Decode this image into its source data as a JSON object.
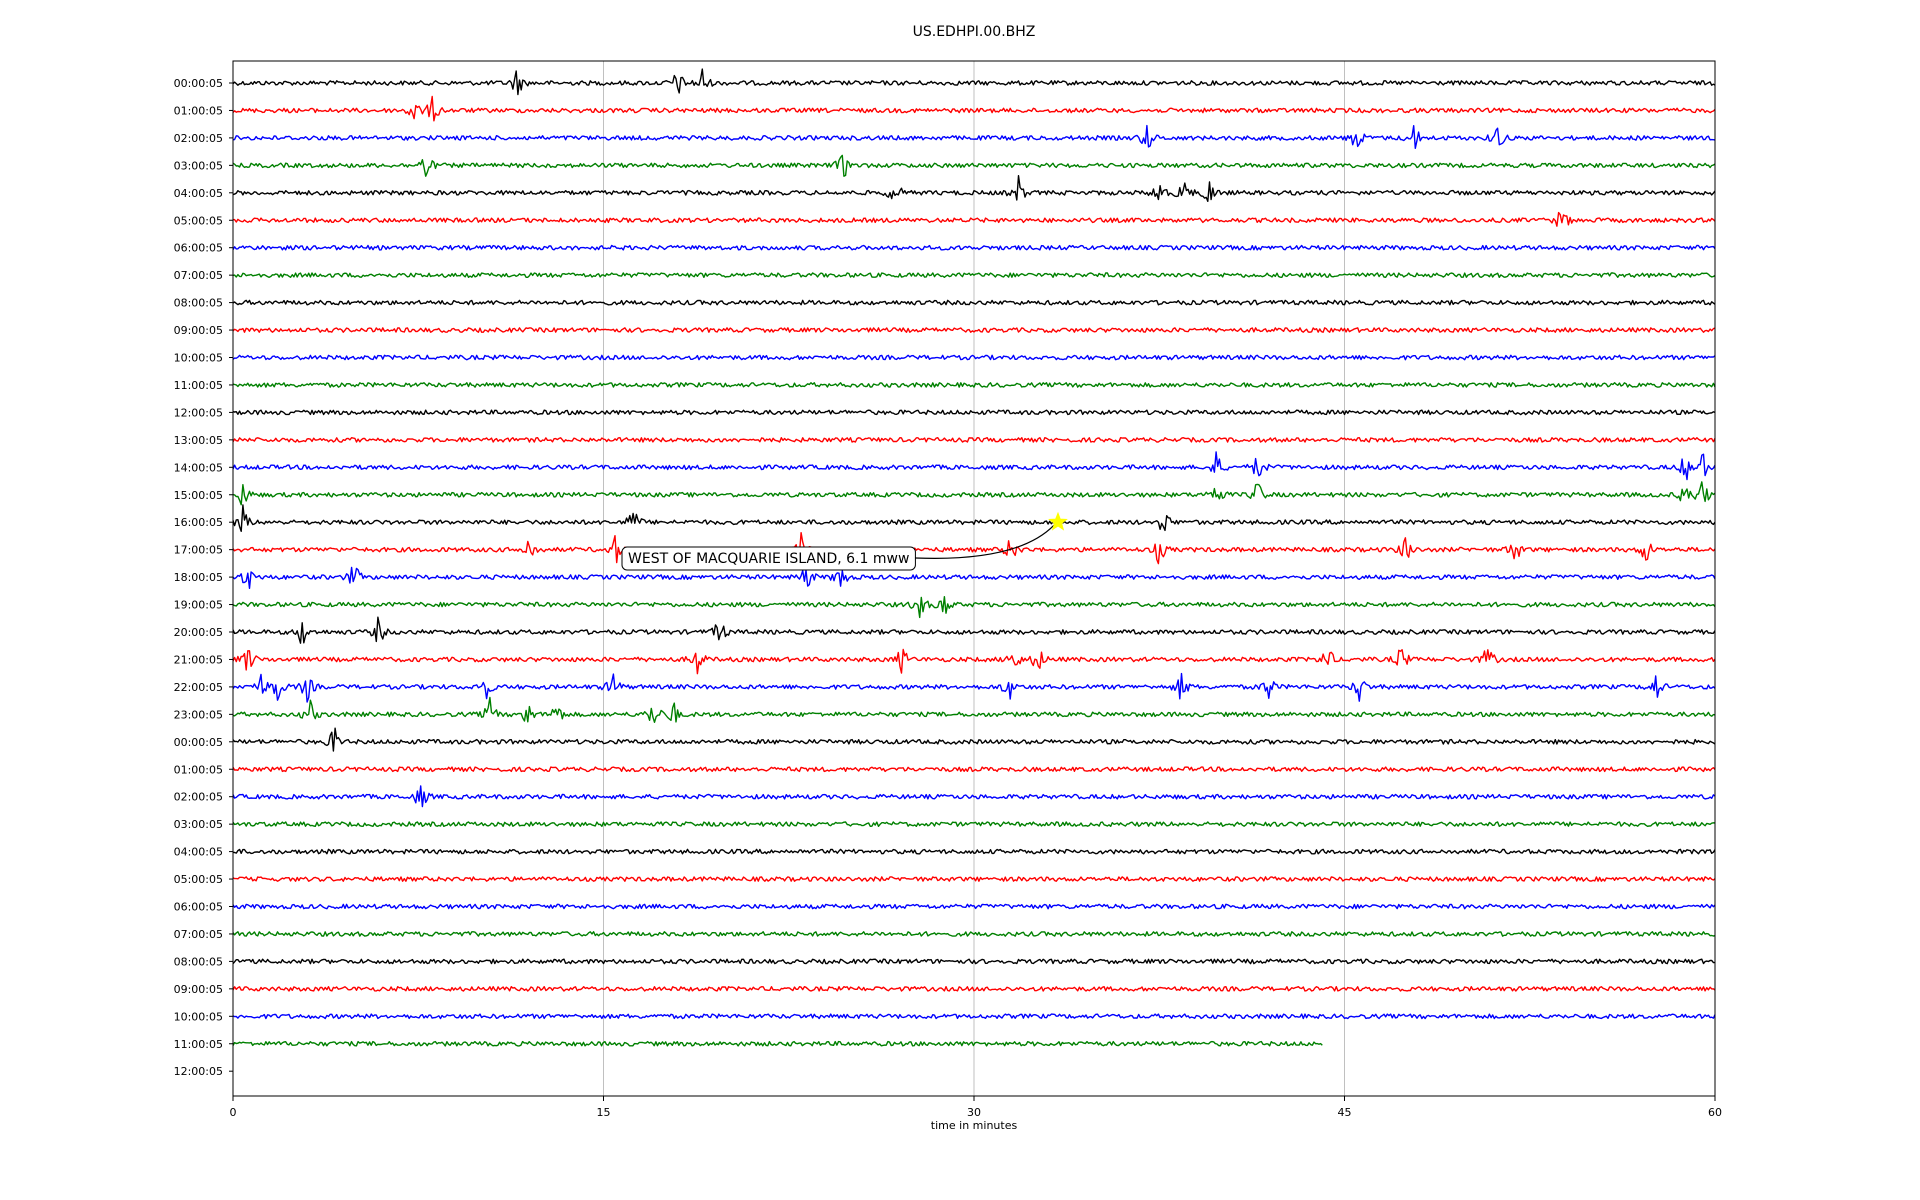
{
  "chart_data": {
    "type": "line",
    "title": "US.EDHPI.00.BHZ",
    "xlabel": "time in minutes",
    "ylabel": "",
    "xlim": [
      0,
      60
    ],
    "x_ticks": [
      "0",
      "15",
      "30",
      "45",
      "60"
    ],
    "grid": "vertical lines at 15, 30, 45",
    "trace_colors": [
      "#000000",
      "#ff0000",
      "#0000ff",
      "#008000"
    ],
    "row_labels": [
      "00:00:05",
      "01:00:05",
      "02:00:05",
      "03:00:05",
      "04:00:05",
      "05:00:05",
      "06:00:05",
      "07:00:05",
      "08:00:05",
      "09:00:05",
      "10:00:05",
      "11:00:05",
      "12:00:05",
      "13:00:05",
      "14:00:05",
      "15:00:05",
      "16:00:05",
      "17:00:05",
      "18:00:05",
      "19:00:05",
      "20:00:05",
      "21:00:05",
      "22:00:05",
      "23:00:05",
      "00:00:05",
      "01:00:05",
      "02:00:05",
      "03:00:05",
      "04:00:05",
      "05:00:05",
      "06:00:05",
      "07:00:05",
      "08:00:05",
      "09:00:05",
      "10:00:05",
      "11:00:05",
      "12:00:05"
    ],
    "rows_with_data": 36,
    "last_row_end_minute": 44.1,
    "events": [
      {
        "row": 0,
        "minutes": [
          11.5,
          18,
          19
        ]
      },
      {
        "row": 1,
        "minutes": [
          7.3,
          8.1
        ]
      },
      {
        "row": 2,
        "minutes": [
          37,
          45.5,
          47.8,
          51.2
        ]
      },
      {
        "row": 3,
        "minutes": [
          7.8,
          24.7
        ]
      },
      {
        "row": 4,
        "minutes": [
          26.8,
          31.8,
          37.5,
          38.5,
          39.5
        ]
      },
      {
        "row": 5,
        "minutes": [
          53.8
        ]
      },
      {
        "row": 14,
        "minutes": [
          39.8,
          41.5,
          58.8,
          59.5
        ]
      },
      {
        "row": 15,
        "minutes": [
          0.4,
          39.8,
          41.5,
          58.8,
          59.5
        ]
      },
      {
        "row": 16,
        "minutes": [
          0.4,
          16.2,
          37.7
        ]
      },
      {
        "row": 17,
        "minutes": [
          12,
          15.5,
          23,
          31.5,
          37.5,
          47.5,
          51.9,
          57.2
        ]
      },
      {
        "row": 18,
        "minutes": [
          0.6,
          4.9,
          23.2,
          24.6
        ]
      },
      {
        "row": 19,
        "minutes": [
          27.8,
          28.8
        ]
      },
      {
        "row": 20,
        "minutes": [
          2.8,
          5.9,
          19.7
        ]
      },
      {
        "row": 21,
        "minutes": [
          0.6,
          18.8,
          27.1,
          31.6,
          32.6,
          44.3,
          47.3,
          50.8
        ]
      },
      {
        "row": 22,
        "minutes": [
          1.1,
          1.8,
          3.0,
          10.2,
          15.4,
          31.4,
          38.4,
          41.9,
          45.6,
          57.6
        ]
      },
      {
        "row": 23,
        "minutes": [
          3.1,
          10.4,
          11.9,
          13.1,
          17,
          17.8
        ]
      },
      {
        "row": 24,
        "minutes": [
          4.1
        ]
      },
      {
        "row": 26,
        "minutes": [
          7.6
        ]
      }
    ],
    "annotation": {
      "text": "WEST OF MACQUARIE ISLAND, 6.1 mww",
      "event_row": 16,
      "event_minute": 33.4
    }
  }
}
